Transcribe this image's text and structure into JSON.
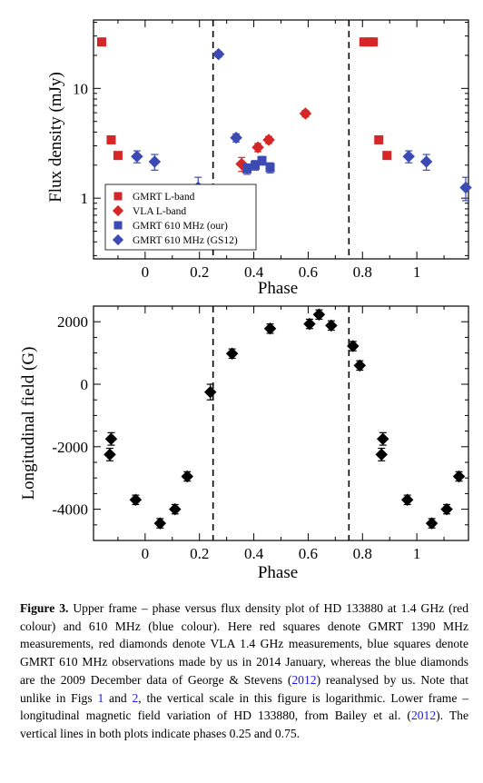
{
  "chart_data": [
    {
      "type": "scatter",
      "xlabel": "Phase",
      "ylabel": "Flux density (mJy)",
      "xlim": [
        -0.19,
        1.19
      ],
      "ylim": [
        0.28,
        42
      ],
      "yscale": "log",
      "xticks": [
        "0",
        "0.2",
        "0.4",
        "0.6",
        "0.8",
        "1"
      ],
      "yticks": [
        "1",
        "10"
      ],
      "vlines": [
        0.25,
        0.75
      ],
      "legend_position": "lower-left",
      "series": [
        {
          "name": "GMRT L-band",
          "marker": "square",
          "color": "#d62728",
          "points": [
            {
              "x": -0.16,
              "y": 26.5,
              "err": 1.5
            },
            {
              "x": -0.125,
              "y": 3.4,
              "err": 0.2
            },
            {
              "x": -0.1,
              "y": 2.45,
              "err": 0.15
            },
            {
              "x": 0.805,
              "y": 26.5,
              "err": 1.2
            },
            {
              "x": 0.825,
              "y": 26.5,
              "err": 1.2
            },
            {
              "x": 0.84,
              "y": 26.5,
              "err": 1.2
            },
            {
              "x": 0.86,
              "y": 3.4,
              "err": 0.2
            },
            {
              "x": 0.89,
              "y": 2.45,
              "err": 0.15
            }
          ]
        },
        {
          "name": "VLA L-band",
          "marker": "diamond",
          "color": "#d62728",
          "points": [
            {
              "x": 0.355,
              "y": 2.05,
              "err": 0.3
            },
            {
              "x": 0.415,
              "y": 2.9,
              "err": 0.25
            },
            {
              "x": 0.455,
              "y": 3.4,
              "err": 0.25
            },
            {
              "x": 0.59,
              "y": 5.9,
              "err": 0.4
            }
          ]
        },
        {
          "name": "GMRT 610 MHz (our)",
          "marker": "square",
          "color": "#3b4bb3",
          "points": [
            {
              "x": 0.375,
              "y": 1.85,
              "err": 0.2
            },
            {
              "x": 0.405,
              "y": 2.0,
              "err": 0.2
            },
            {
              "x": 0.43,
              "y": 2.2,
              "err": 0.2
            },
            {
              "x": 0.46,
              "y": 1.9,
              "err": 0.2
            }
          ]
        },
        {
          "name": "GMRT 610 MHz (GS12)",
          "marker": "diamond",
          "color": "#3b4bb3",
          "points": [
            {
              "x": -0.03,
              "y": 2.4,
              "err": 0.3
            },
            {
              "x": 0.035,
              "y": 2.15,
              "err": 0.35
            },
            {
              "x": 0.195,
              "y": 1.25,
              "err": 0.3
            },
            {
              "x": 0.27,
              "y": 20.5,
              "err": 1.2
            },
            {
              "x": 0.335,
              "y": 3.55,
              "err": 0.3
            },
            {
              "x": 0.97,
              "y": 2.4,
              "err": 0.3
            },
            {
              "x": 1.035,
              "y": 2.15,
              "err": 0.35
            },
            {
              "x": 1.18,
              "y": 1.25,
              "err": 0.3
            }
          ]
        }
      ]
    },
    {
      "type": "scatter",
      "xlabel": "Phase",
      "ylabel": "Longitudinal field (G)",
      "xlim": [
        -0.19,
        1.19
      ],
      "ylim": [
        -5000,
        2500
      ],
      "xticks": [
        "0",
        "0.2",
        "0.4",
        "0.6",
        "0.8",
        "1"
      ],
      "yticks": [
        "-4000",
        "-2000",
        "0",
        "2000"
      ],
      "vlines": [
        0.25,
        0.75
      ],
      "series": [
        {
          "name": "",
          "marker": "diamond",
          "color": "#000000",
          "points": [
            {
              "x": -0.13,
              "y": -2250,
              "err": 200
            },
            {
              "x": -0.125,
              "y": -1750,
              "err": 200
            },
            {
              "x": -0.035,
              "y": -3700,
              "err": 150
            },
            {
              "x": 0.055,
              "y": -4450,
              "err": 150
            },
            {
              "x": 0.11,
              "y": -4000,
              "err": 150
            },
            {
              "x": 0.155,
              "y": -2950,
              "err": 150
            },
            {
              "x": 0.24,
              "y": -250,
              "err": 250
            },
            {
              "x": 0.32,
              "y": 980,
              "err": 150
            },
            {
              "x": 0.46,
              "y": 1780,
              "err": 150
            },
            {
              "x": 0.605,
              "y": 1930,
              "err": 150
            },
            {
              "x": 0.64,
              "y": 2230,
              "err": 150
            },
            {
              "x": 0.685,
              "y": 1880,
              "err": 150
            },
            {
              "x": 0.765,
              "y": 1220,
              "err": 150
            },
            {
              "x": 0.79,
              "y": 600,
              "err": 150
            },
            {
              "x": 0.87,
              "y": -2250,
              "err": 200
            },
            {
              "x": 0.875,
              "y": -1750,
              "err": 200
            },
            {
              "x": 0.965,
              "y": -3700,
              "err": 150
            },
            {
              "x": 1.055,
              "y": -4450,
              "err": 150
            },
            {
              "x": 1.11,
              "y": -4000,
              "err": 150
            },
            {
              "x": 1.155,
              "y": -2950,
              "err": 150
            }
          ]
        }
      ]
    }
  ],
  "caption": {
    "label": "Figure 3.",
    "text_1": " Upper frame – phase versus flux density plot of HD 133880 at 1.4 GHz (red colour) and 610 MHz (blue colour). Here red squares denote GMRT 1390 MHz measurements, red diamonds denote VLA 1.4 GHz measurements, blue squares denote GMRT 610 MHz observations made by us in 2014 January, whereas the blue diamonds are the 2009 December data of George & Stevens (",
    "ref_1": "2012",
    "text_2": ") reanalysed by us. Note that unlike in Figs ",
    "ref_2": "1",
    "text_3": " and ",
    "ref_3": "2",
    "text_4": ", the vertical scale in this figure is logarithmic. Lower frame – longitudinal magnetic field variation of HD 133880, from Bailey et al. (",
    "ref_4": "2012",
    "text_5": "). The vertical lines in both plots indicate phases 0.25 and 0.75."
  }
}
